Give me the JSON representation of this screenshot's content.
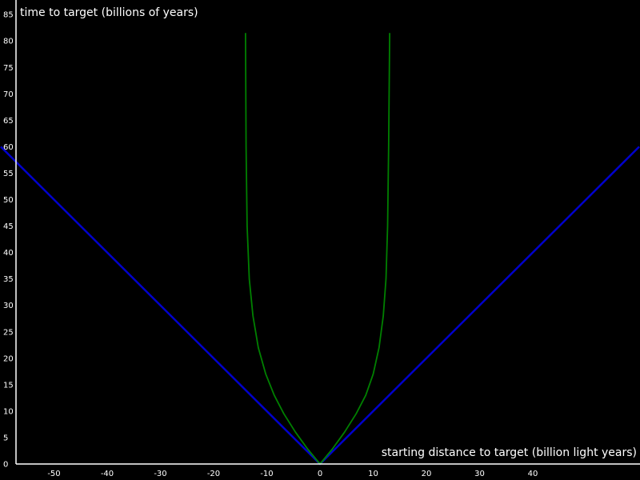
{
  "chart_data": {
    "type": "line",
    "title": "",
    "xlabel": "starting distance to target (billion light years)",
    "ylabel": "time to target (billions of years)",
    "xlim": [
      -60,
      60
    ],
    "ylim": [
      0,
      85
    ],
    "x_ticks": [
      -50,
      -40,
      -30,
      -20,
      -10,
      0,
      10,
      20,
      30,
      40
    ],
    "y_ticks": [
      0,
      5,
      10,
      15,
      20,
      25,
      30,
      35,
      40,
      45,
      50,
      55,
      60,
      65,
      70,
      75,
      80,
      85
    ],
    "grid": false,
    "background": "#000000",
    "axis_color": "#ffffff",
    "series": [
      {
        "color": "#0000cc",
        "points": [
          [
            -60,
            60
          ],
          [
            0,
            0
          ],
          [
            60,
            60
          ]
        ]
      },
      {
        "color": "#008000",
        "points": [
          [
            -14.0,
            81.5
          ],
          [
            -13.9,
            60
          ],
          [
            -13.7,
            45
          ],
          [
            -13.3,
            35
          ],
          [
            -12.6,
            28
          ],
          [
            -11.6,
            22
          ],
          [
            -10.2,
            17
          ],
          [
            -8.6,
            13
          ],
          [
            -6.8,
            9.5
          ],
          [
            -4.6,
            6
          ],
          [
            -2.3,
            2.8
          ],
          [
            0,
            0
          ],
          [
            2.3,
            2.8
          ],
          [
            4.6,
            6
          ],
          [
            6.8,
            9.5
          ],
          [
            8.6,
            13
          ],
          [
            10.0,
            17
          ],
          [
            11.1,
            22
          ],
          [
            11.9,
            28
          ],
          [
            12.4,
            35
          ],
          [
            12.7,
            45
          ],
          [
            12.9,
            60
          ],
          [
            13.1,
            81.5
          ]
        ]
      }
    ]
  }
}
